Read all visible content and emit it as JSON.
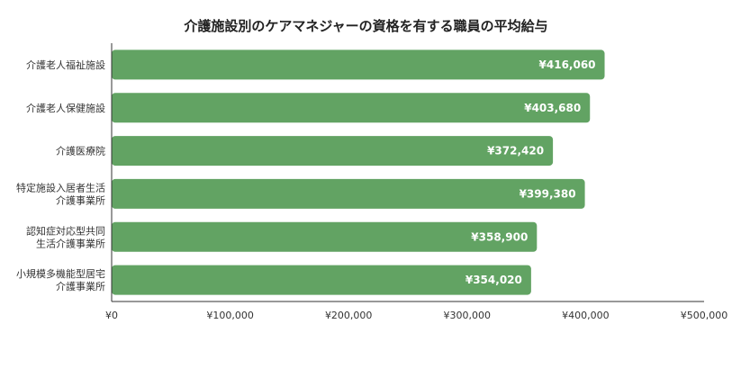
{
  "chart_data": {
    "type": "bar",
    "orientation": "horizontal",
    "title": "介護施設別のケアマネジャーの資格を有する職員の平均給与",
    "categories": [
      [
        "介護老人福祉施設"
      ],
      [
        "介護老人保健施設"
      ],
      [
        "介護医療院"
      ],
      [
        "特定施設入居者生活",
        "介護事業所"
      ],
      [
        "認知症対応型共同",
        "生活介護事業所"
      ],
      [
        "小規模多機能型居宅",
        "介護事業所"
      ]
    ],
    "values": [
      416060,
      403680,
      372420,
      399380,
      358900,
      354020
    ],
    "value_labels": [
      "¥416,060",
      "¥403,680",
      "¥372,420",
      "¥399,380",
      "¥358,900",
      "¥354,020"
    ],
    "x_ticks": [
      0,
      100000,
      200000,
      300000,
      400000,
      500000
    ],
    "x_tick_labels": [
      "¥0",
      "¥100,000",
      "¥200,000",
      "¥300,000",
      "¥400,000",
      "¥500,000"
    ],
    "xlim": [
      0,
      500000
    ],
    "xlabel": "",
    "ylabel": "",
    "grid": false,
    "colors": {
      "bar": "#62a363",
      "axis": "#333333"
    }
  }
}
